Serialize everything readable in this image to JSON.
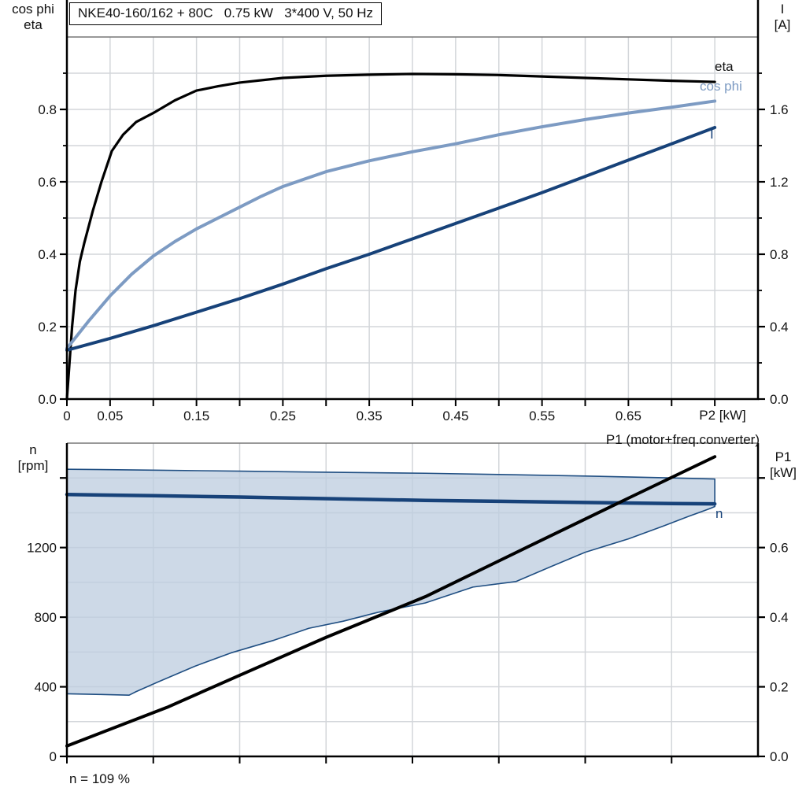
{
  "title": "NKE40-160/162 + 80C   0.75 kW   3*400 V, 50 Hz",
  "labels": {
    "top_left_axis": [
      "cos phi",
      "eta"
    ],
    "top_right_axis": [
      "I",
      "[A]"
    ],
    "x_axis": "P2 [kW]",
    "eta_curve": "eta",
    "cos_phi_curve": "cos phi",
    "current_curve": "I",
    "p1_curve": "P1 (motor+freq.converter)",
    "bottom_left_axis": [
      "n",
      "[rpm]"
    ],
    "bottom_right_axis": [
      "P1",
      "[kW]"
    ],
    "n_curve": "n",
    "footer_note": "n = 109 %"
  },
  "colors": {
    "eta": "#000000",
    "cos_phi": "#7D9BC3",
    "current": "#174279",
    "n_line": "#174279",
    "p1_line": "#000000",
    "area_fill": "rgb(188,204,223)",
    "area_edge": "#1F4E82",
    "grid": "#D3D6DA",
    "axis": "#000000",
    "frame_top": "#777777"
  },
  "chart_data": [
    {
      "type": "line",
      "title": "NKE40-160/162 + 80C   0.75 kW   3*400 V, 50 Hz",
      "xlabel": "P2 [kW]",
      "ylabel_left": "cos phi / eta",
      "ylabel_right": "I [A]",
      "xlim": [
        0,
        0.8
      ],
      "ylim_left": [
        0,
        1.0
      ],
      "ylim_right": [
        0,
        2.0
      ],
      "grid_x_step": 0.05,
      "grid_y_step": 0.1,
      "tick_x_step": 0.05,
      "tick_y_left_minor_step": 0.1,
      "tick_y_right_minor_step": 0.2,
      "tick_x_major": [
        {
          "v": 0,
          "label": "0"
        },
        {
          "v": 0.05,
          "label": "0.05"
        },
        {
          "v": 0.15,
          "label": "0.15"
        },
        {
          "v": 0.25,
          "label": "0.25"
        },
        {
          "v": 0.35,
          "label": "0.35"
        },
        {
          "v": 0.45,
          "label": "0.45"
        },
        {
          "v": 0.55,
          "label": "0.55"
        },
        {
          "v": 0.65,
          "label": "0.65"
        }
      ],
      "tick_y_left_major": [
        {
          "v": 0,
          "label": "0.0"
        },
        {
          "v": 0.2,
          "label": "0.2"
        },
        {
          "v": 0.4,
          "label": "0.4"
        },
        {
          "v": 0.6,
          "label": "0.6"
        },
        {
          "v": 0.8,
          "label": "0.8"
        }
      ],
      "tick_y_right_major": [
        {
          "v": 0,
          "label": "0.0"
        },
        {
          "v": 0.4,
          "label": "0.4"
        },
        {
          "v": 0.8,
          "label": "0.8"
        },
        {
          "v": 1.2,
          "label": "1.2"
        },
        {
          "v": 1.6,
          "label": "1.6"
        }
      ],
      "series": [
        {
          "name": "eta",
          "axis": "left",
          "color": "#000000",
          "width": 3.2,
          "points": [
            [
              0,
              0
            ],
            [
              0.003,
              0.1
            ],
            [
              0.006,
              0.2
            ],
            [
              0.01,
              0.3
            ],
            [
              0.015,
              0.38
            ],
            [
              0.02,
              0.43
            ],
            [
              0.03,
              0.52
            ],
            [
              0.04,
              0.6
            ],
            [
              0.052,
              0.685
            ],
            [
              0.065,
              0.73
            ],
            [
              0.08,
              0.765
            ],
            [
              0.1,
              0.79
            ],
            [
              0.125,
              0.825
            ],
            [
              0.15,
              0.852
            ],
            [
              0.175,
              0.864
            ],
            [
              0.2,
              0.874
            ],
            [
              0.25,
              0.887
            ],
            [
              0.3,
              0.893
            ],
            [
              0.35,
              0.896
            ],
            [
              0.4,
              0.898
            ],
            [
              0.45,
              0.897
            ],
            [
              0.5,
              0.895
            ],
            [
              0.55,
              0.891
            ],
            [
              0.6,
              0.887
            ],
            [
              0.65,
              0.883
            ],
            [
              0.7,
              0.879
            ],
            [
              0.75,
              0.876
            ]
          ]
        },
        {
          "name": "cos phi",
          "axis": "left",
          "color": "#7D9BC3",
          "width": 4,
          "points": [
            [
              0,
              0.14
            ],
            [
              0.025,
              0.215
            ],
            [
              0.05,
              0.285
            ],
            [
              0.075,
              0.345
            ],
            [
              0.1,
              0.395
            ],
            [
              0.125,
              0.435
            ],
            [
              0.15,
              0.47
            ],
            [
              0.175,
              0.5
            ],
            [
              0.2,
              0.53
            ],
            [
              0.225,
              0.56
            ],
            [
              0.25,
              0.587
            ],
            [
              0.3,
              0.628
            ],
            [
              0.35,
              0.658
            ],
            [
              0.4,
              0.683
            ],
            [
              0.45,
              0.705
            ],
            [
              0.5,
              0.73
            ],
            [
              0.55,
              0.752
            ],
            [
              0.6,
              0.772
            ],
            [
              0.65,
              0.79
            ],
            [
              0.7,
              0.806
            ],
            [
              0.75,
              0.823
            ]
          ]
        },
        {
          "name": "I",
          "axis": "right",
          "color": "#174279",
          "width": 4,
          "points": [
            [
              0,
              0.27
            ],
            [
              0.05,
              0.335
            ],
            [
              0.1,
              0.405
            ],
            [
              0.15,
              0.48
            ],
            [
              0.2,
              0.555
            ],
            [
              0.25,
              0.635
            ],
            [
              0.3,
              0.72
            ],
            [
              0.35,
              0.8
            ],
            [
              0.4,
              0.885
            ],
            [
              0.45,
              0.97
            ],
            [
              0.5,
              1.055
            ],
            [
              0.55,
              1.14
            ],
            [
              0.6,
              1.23
            ],
            [
              0.65,
              1.32
            ],
            [
              0.7,
              1.41
            ],
            [
              0.75,
              1.5
            ]
          ]
        }
      ]
    },
    {
      "type": "line+area",
      "xlabel": "P2 [kW]",
      "ylabel_left": "n [rpm]",
      "ylabel_right": "P1 [kW]",
      "xlim": [
        0,
        0.8
      ],
      "ylim_left": [
        0,
        1800
      ],
      "ylim_right": [
        0,
        0.9
      ],
      "grid_x_step": 0.1,
      "grid_y_step": 200,
      "tick_x_step": 0.1,
      "tick_y_left_minor_step": 400,
      "tick_y_right_minor_step": 0.2,
      "tick_x_major": [],
      "tick_y_left_major": [
        {
          "v": 0,
          "label": "0"
        },
        {
          "v": 400,
          "label": "400"
        },
        {
          "v": 800,
          "label": "800"
        },
        {
          "v": 1200,
          "label": "1200"
        },
        {
          "v": 1600,
          "label": ""
        }
      ],
      "tick_y_right_major": [
        {
          "v": 0,
          "label": "0.0"
        },
        {
          "v": 0.2,
          "label": "0.2"
        },
        {
          "v": 0.4,
          "label": "0.4"
        },
        {
          "v": 0.6,
          "label": "0.6"
        },
        {
          "v": 0.8,
          "label": ""
        }
      ],
      "area": {
        "name": "speed-control-range",
        "upper": [
          [
            0,
            1650
          ],
          [
            0.1,
            1645
          ],
          [
            0.2,
            1639
          ],
          [
            0.3,
            1633
          ],
          [
            0.415,
            1627
          ],
          [
            0.5,
            1620
          ],
          [
            0.6,
            1611
          ],
          [
            0.7,
            1600
          ],
          [
            0.75,
            1594
          ]
        ],
        "lower": [
          [
            0,
            360
          ],
          [
            0.04,
            356
          ],
          [
            0.072,
            352
          ],
          [
            0.08,
            372
          ],
          [
            0.105,
            427
          ],
          [
            0.148,
            518
          ],
          [
            0.19,
            595
          ],
          [
            0.24,
            668
          ],
          [
            0.28,
            736
          ],
          [
            0.32,
            777
          ],
          [
            0.36,
            828
          ],
          [
            0.415,
            882
          ],
          [
            0.47,
            973
          ],
          [
            0.52,
            1005
          ],
          [
            0.56,
            1090
          ],
          [
            0.6,
            1173
          ],
          [
            0.65,
            1250
          ],
          [
            0.69,
            1323
          ],
          [
            0.72,
            1380
          ],
          [
            0.745,
            1425
          ],
          [
            0.75,
            1436
          ]
        ]
      },
      "series": [
        {
          "name": "n",
          "axis": "left",
          "color": "#174279",
          "width": 4.5,
          "points": [
            [
              0,
              1505
            ],
            [
              0.1,
              1498
            ],
            [
              0.2,
              1490
            ],
            [
              0.3,
              1481
            ],
            [
              0.415,
              1471
            ],
            [
              0.5,
              1466
            ],
            [
              0.6,
              1459
            ],
            [
              0.7,
              1453
            ],
            [
              0.75,
              1451
            ]
          ]
        },
        {
          "name": "P1 (motor+freq.converter)",
          "axis": "right",
          "color": "#000000",
          "width": 4,
          "points": [
            [
              0,
              0.03
            ],
            [
              0.116,
              0.141
            ],
            [
              0.2,
              0.233
            ],
            [
              0.3,
              0.342
            ],
            [
              0.415,
              0.459
            ],
            [
              0.536,
              0.605
            ],
            [
              0.65,
              0.742
            ],
            [
              0.75,
              0.861
            ]
          ]
        }
      ]
    }
  ]
}
